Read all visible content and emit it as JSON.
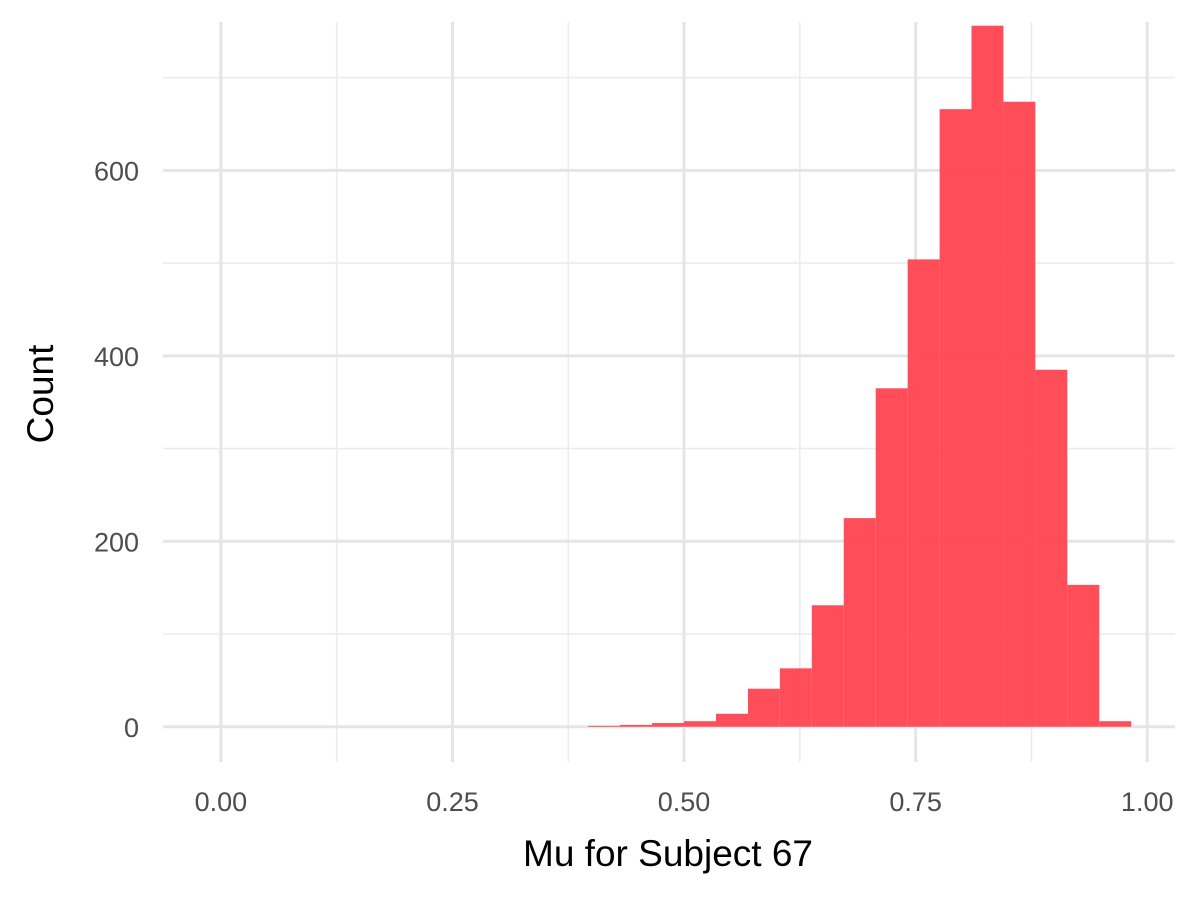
{
  "chart_data": {
    "type": "bar",
    "subtype": "histogram",
    "title": "",
    "xlabel": "Mu for Subject 67",
    "ylabel": "Count",
    "xlim": [
      -0.0625,
      1.03
    ],
    "ylim": [
      -38,
      760
    ],
    "x_ticks": [
      "0.00",
      "0.25",
      "0.50",
      "0.75",
      "1.00"
    ],
    "y_ticks": [
      "0",
      "200",
      "400",
      "600"
    ],
    "grid": true,
    "legend": "none",
    "bar_color": "#FF4550",
    "bin_width": 0.03448,
    "bins": [
      {
        "x0": 0.3966,
        "x1": 0.431,
        "count": 1
      },
      {
        "x0": 0.431,
        "x1": 0.4655,
        "count": 2
      },
      {
        "x0": 0.4655,
        "x1": 0.5,
        "count": 4
      },
      {
        "x0": 0.5,
        "x1": 0.5345,
        "count": 6
      },
      {
        "x0": 0.5345,
        "x1": 0.569,
        "count": 14
      },
      {
        "x0": 0.569,
        "x1": 0.6034,
        "count": 41
      },
      {
        "x0": 0.6034,
        "x1": 0.6379,
        "count": 63
      },
      {
        "x0": 0.6379,
        "x1": 0.6724,
        "count": 131
      },
      {
        "x0": 0.6724,
        "x1": 0.7069,
        "count": 225
      },
      {
        "x0": 0.7069,
        "x1": 0.7414,
        "count": 365
      },
      {
        "x0": 0.7414,
        "x1": 0.7759,
        "count": 504
      },
      {
        "x0": 0.7759,
        "x1": 0.8103,
        "count": 666
      },
      {
        "x0": 0.8103,
        "x1": 0.8448,
        "count": 756
      },
      {
        "x0": 0.8448,
        "x1": 0.8793,
        "count": 674
      },
      {
        "x0": 0.8793,
        "x1": 0.9138,
        "count": 385
      },
      {
        "x0": 0.9138,
        "x1": 0.9483,
        "count": 153
      },
      {
        "x0": 0.9483,
        "x1": 0.9828,
        "count": 6
      }
    ]
  }
}
